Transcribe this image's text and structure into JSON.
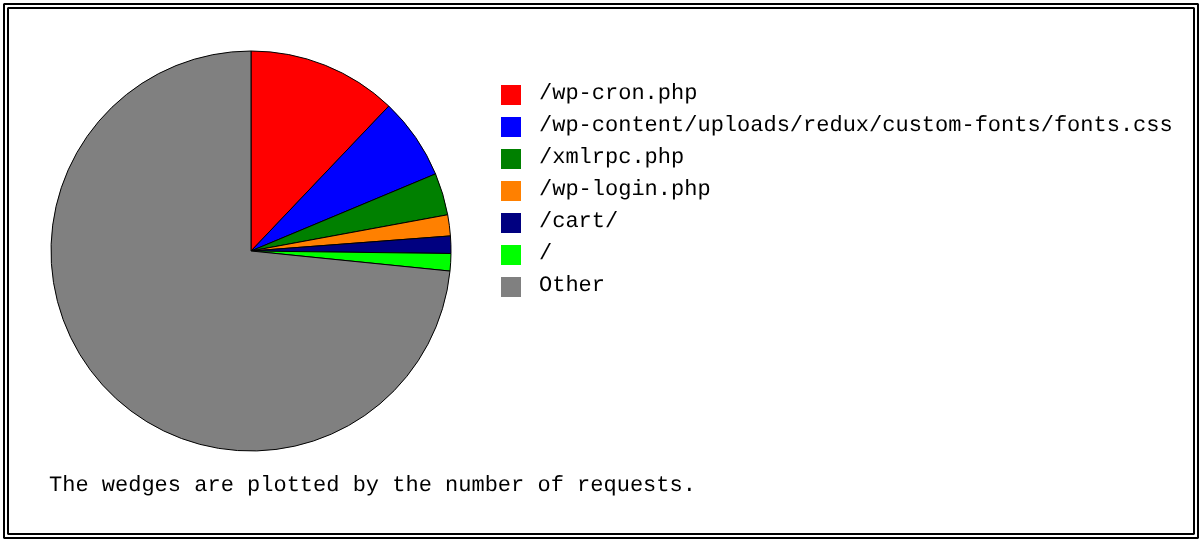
{
  "chart_data": {
    "type": "pie",
    "categories": [
      "/wp-cron.php",
      "/wp-content/uploads/redux/custom-fonts/fonts.css",
      "/xmlrpc.php",
      "/wp-login.php",
      "/cart/",
      "/",
      "Other"
    ],
    "values": [
      12.1,
      6.6,
      3.4,
      1.7,
      1.4,
      1.4,
      73.4
    ],
    "colors": [
      "#ff0000",
      "#0000ff",
      "#008000",
      "#ff8000",
      "#000080",
      "#00ff00",
      "#808080"
    ],
    "legend": "right",
    "annotations": [
      "The wedges are plotted by the number of requests."
    ]
  }
}
